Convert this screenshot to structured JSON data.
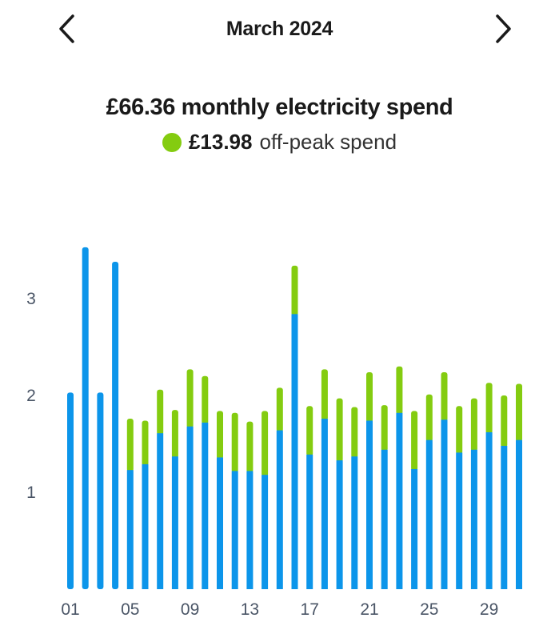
{
  "header": {
    "title": "March 2024",
    "prev_icon": "chevron-left-icon",
    "next_icon": "chevron-right-icon"
  },
  "summary": {
    "monthly_spend_text": "£66.36 monthly electricity spend",
    "offpeak_amount": "£13.98",
    "offpeak_label": "off-peak spend"
  },
  "colors": {
    "peak": "#0c95ea",
    "offpeak": "#84cc10",
    "chevron": "#1a1a1a",
    "tick_text": "#4a5566"
  },
  "chart_data": {
    "type": "bar",
    "stacked": true,
    "categories": [
      "01",
      "02",
      "03",
      "04",
      "05",
      "06",
      "07",
      "08",
      "09",
      "10",
      "11",
      "12",
      "13",
      "14",
      "15",
      "16",
      "17",
      "18",
      "19",
      "20",
      "21",
      "22",
      "23",
      "24",
      "25",
      "26",
      "27",
      "28",
      "29",
      "30",
      "31"
    ],
    "series": [
      {
        "name": "",
        "values": [
          2.03,
          3.53,
          2.03,
          3.38,
          1.23,
          1.29,
          1.61,
          1.37,
          1.68,
          1.72,
          1.36,
          1.22,
          1.22,
          1.18,
          1.64,
          2.84,
          1.39,
          1.76,
          1.33,
          1.37,
          1.74,
          1.44,
          1.82,
          1.24,
          1.54,
          1.75,
          1.41,
          1.44,
          1.62,
          1.48,
          1.54
        ]
      },
      {
        "name": "",
        "values": [
          0,
          0,
          0,
          0,
          0.53,
          0.45,
          0.45,
          0.48,
          0.59,
          0.48,
          0.48,
          0.6,
          0.51,
          0.66,
          0.44,
          0.5,
          0.5,
          0.51,
          0.64,
          0.51,
          0.5,
          0.46,
          0.48,
          0.6,
          0.47,
          0.49,
          0.48,
          0.53,
          0.51,
          0.52,
          0.58
        ]
      }
    ],
    "x_tick_labels": [
      "01",
      "05",
      "09",
      "13",
      "17",
      "21",
      "25",
      "29"
    ],
    "y_ticks": [
      1,
      2,
      3
    ],
    "ylim": [
      0,
      3.6
    ],
    "grid": false,
    "legend": "none"
  }
}
